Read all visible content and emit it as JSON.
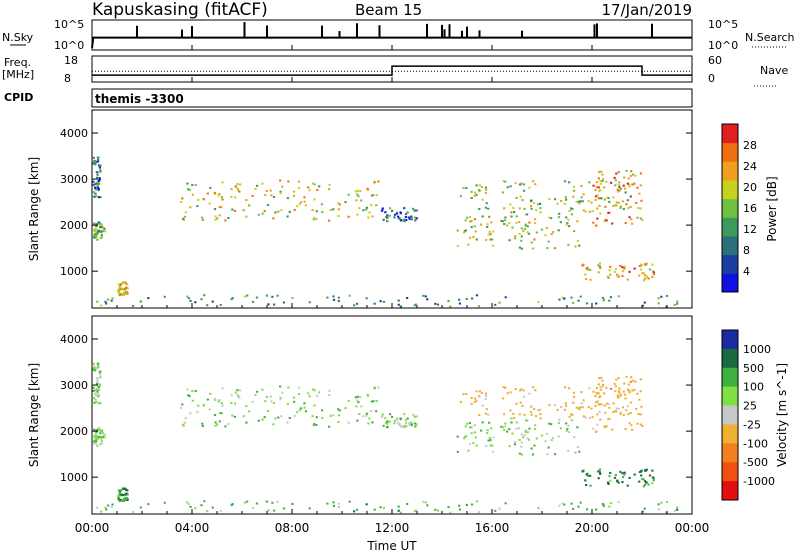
{
  "header": {
    "station": "Kapuskasing (fitACF)",
    "beam": "Beam 15",
    "date": "17/Jan/2019"
  },
  "noise_panel": {
    "left_label": "N.Sky",
    "right_label": "N.Search",
    "ytick_top": "10^5",
    "ytick_bottom": "10^0",
    "right_tick_top": "10^5",
    "right_tick_bottom": "10^0",
    "sky_level": 0.4,
    "spike_hours": [
      1.8,
      3.6,
      4.0,
      6.1,
      7.0,
      9.2,
      9.9,
      10.6,
      11.5,
      13.4,
      14.0,
      14.1,
      14.3,
      14.8,
      15.0,
      15.5,
      17.2,
      20.1,
      20.2,
      22.4
    ]
  },
  "freq_panel": {
    "left_label_line1": "Freq.",
    "left_label_line2": "[MHz]",
    "right_label": "Nave",
    "left_ticks": [
      "18",
      "8"
    ],
    "right_ticks": [
      "60",
      "0"
    ],
    "steps": [
      [
        0,
        10.2
      ],
      [
        0.1,
        10.2
      ],
      [
        12.0,
        10.2
      ],
      [
        12.0,
        14.3
      ],
      [
        22.0,
        14.3
      ],
      [
        22.0,
        10.2
      ],
      [
        24,
        10.2
      ]
    ],
    "nave_level": 12.0
  },
  "cpid": {
    "label": "CPID",
    "program": "themis -3300"
  },
  "power_panel": {
    "ylabel": "Slant Range [km]",
    "yticks": [
      "1000",
      "2000",
      "3000",
      "4000"
    ],
    "colorbar_label": "Power [dB]",
    "colorbar_ticks": [
      "4",
      "8",
      "12",
      "16",
      "20",
      "24",
      "28"
    ],
    "colors": [
      "#1010e0",
      "#1a3fa0",
      "#2c6e7a",
      "#3c9a5a",
      "#70c040",
      "#c8d020",
      "#f0a020",
      "#f07010",
      "#e02020"
    ]
  },
  "velocity_panel": {
    "ylabel": "Slant Range [km]",
    "yticks": [
      "1000",
      "2000",
      "3000",
      "4000"
    ],
    "colorbar_label": "Velocity [m s^-1]",
    "colorbar_ticks": [
      "1000",
      "500",
      "100",
      "25",
      "-25",
      "-100",
      "-500",
      "-1000"
    ],
    "colors": [
      "#1a2aa0",
      "#1a6a40",
      "#40b040",
      "#80e040",
      "#c8c8c8",
      "#f0b030",
      "#f08020",
      "#f05010",
      "#e01010"
    ]
  },
  "xaxis": {
    "ticks": [
      "00:00",
      "04:00",
      "08:00",
      "12:00",
      "16:00",
      "20:00",
      "00:00"
    ],
    "label": "Time UT"
  },
  "chart_data": {
    "type": "heatmap",
    "title": "Kapuskasing (fitACF)  Beam 15  17/Jan/2019",
    "xlabel": "Time UT",
    "ylabel": "Slant Range [km]",
    "xlim_hours": [
      0,
      24
    ],
    "ylim_km": [
      200,
      4500
    ],
    "power_clim_db": [
      0,
      30
    ],
    "velocity_clim_ms": [
      -1000,
      1000
    ],
    "scatter_regions": [
      {
        "t": [
          0.0,
          0.5
        ],
        "r": [
          1700,
          2100
        ],
        "power_db": 14,
        "velocity_ms": 0
      },
      {
        "t": [
          0.0,
          0.3
        ],
        "r": [
          2600,
          3500
        ],
        "power_db": 8,
        "velocity_ms": 0
      },
      {
        "t": [
          1.0,
          1.4
        ],
        "r": [
          500,
          800
        ],
        "power_db": 20,
        "velocity_ms": 80
      },
      {
        "t": [
          3.5,
          11.5
        ],
        "r": [
          2100,
          3000
        ],
        "power_db": 18,
        "velocity_ms": 0
      },
      {
        "t": [
          11.5,
          13.0
        ],
        "r": [
          2100,
          2400
        ],
        "power_db": 8,
        "velocity_ms": 0
      },
      {
        "t": [
          14.5,
          21.5
        ],
        "r": [
          2300,
          3000
        ],
        "power_db": 16,
        "velocity_ms": -200
      },
      {
        "t": [
          14.5,
          19.5
        ],
        "r": [
          1500,
          2300
        ],
        "power_db": 18,
        "velocity_ms": 0
      },
      {
        "t": [
          20.0,
          22.0
        ],
        "r": [
          2000,
          3200
        ],
        "power_db": 22,
        "velocity_ms": -300
      },
      {
        "t": [
          19.5,
          22.5
        ],
        "r": [
          800,
          1200
        ],
        "power_db": 20,
        "velocity_ms": 150
      },
      {
        "t": [
          0.0,
          24.0
        ],
        "r": [
          250,
          500
        ],
        "power_db": 10,
        "velocity_ms": 30
      }
    ]
  }
}
